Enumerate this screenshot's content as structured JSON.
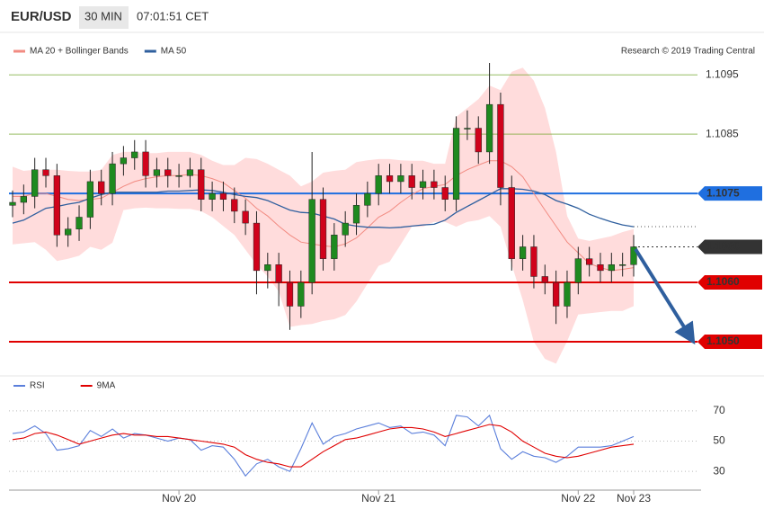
{
  "header": {
    "symbol": "EUR/USD",
    "interval": "30 MIN",
    "time": "07:01:51 CET"
  },
  "chart_data": [
    {
      "type": "candlestick",
      "credit": "Research © 2019 Trading Central",
      "up_color": "#1f8a1f",
      "down_color": "#d0021b",
      "open": [
        1.1073,
        1.10735,
        1.10745,
        1.1079,
        1.1078,
        1.1068,
        1.1069,
        1.1071,
        1.1077,
        1.1075,
        1.108,
        1.1081,
        1.1082,
        1.1078,
        1.1079,
        1.1078,
        1.1078,
        1.1079,
        1.1074,
        1.1075,
        1.1074,
        1.1072,
        1.107,
        1.1062,
        1.1063,
        1.106,
        1.1056,
        1.106,
        1.1074,
        1.1064,
        1.1068,
        1.107,
        1.1073,
        1.1075,
        1.1078,
        1.1077,
        1.1078,
        1.1076,
        1.1077,
        1.1076,
        1.1074,
        1.1086,
        1.1086,
        1.1082,
        1.109,
        1.1076,
        1.1064,
        1.1066,
        1.1061,
        1.106,
        1.1056,
        1.106,
        1.1064,
        1.1063,
        1.1062,
        1.1063,
        1.1063
      ],
      "high": [
        1.10755,
        1.10765,
        1.1081,
        1.1081,
        1.108,
        1.1071,
        1.1073,
        1.1079,
        1.1079,
        1.1082,
        1.1083,
        1.1084,
        1.1084,
        1.1081,
        1.1081,
        1.108,
        1.1081,
        1.1081,
        1.1077,
        1.1077,
        1.1076,
        1.1074,
        1.1072,
        1.1065,
        1.1065,
        1.1062,
        1.1062,
        1.1082,
        1.1076,
        1.107,
        1.1072,
        1.1075,
        1.1077,
        1.108,
        1.108,
        1.108,
        1.108,
        1.1079,
        1.1079,
        1.1078,
        1.1088,
        1.1089,
        1.1088,
        1.1097,
        1.1092,
        1.1078,
        1.1068,
        1.1068,
        1.1063,
        1.1062,
        1.1062,
        1.1066,
        1.1066,
        1.1065,
        1.1065,
        1.1065,
        1.1068
      ],
      "low": [
        1.1071,
        1.10715,
        1.10725,
        1.1076,
        1.1066,
        1.1066,
        1.1067,
        1.1069,
        1.1073,
        1.1073,
        1.1078,
        1.1079,
        1.1076,
        1.1076,
        1.1076,
        1.1076,
        1.1076,
        1.1072,
        1.1072,
        1.1072,
        1.107,
        1.1068,
        1.1058,
        1.1059,
        1.1056,
        1.1052,
        1.1054,
        1.1058,
        1.1062,
        1.1062,
        1.1066,
        1.1068,
        1.1071,
        1.1073,
        1.1075,
        1.1075,
        1.1074,
        1.1074,
        1.1074,
        1.1072,
        1.1072,
        1.1084,
        1.108,
        1.108,
        1.1073,
        1.1062,
        1.1062,
        1.1059,
        1.1058,
        1.1053,
        1.1054,
        1.1058,
        1.1061,
        1.106,
        1.106,
        1.1061,
        1.1061
      ],
      "close": [
        1.10735,
        1.10745,
        1.1079,
        1.1078,
        1.1068,
        1.1069,
        1.1071,
        1.1077,
        1.1075,
        1.108,
        1.1081,
        1.1082,
        1.1078,
        1.1079,
        1.1078,
        1.1078,
        1.1079,
        1.1074,
        1.1075,
        1.1074,
        1.1072,
        1.107,
        1.1062,
        1.1063,
        1.106,
        1.1056,
        1.106,
        1.1074,
        1.1064,
        1.1068,
        1.107,
        1.1073,
        1.1075,
        1.1078,
        1.1077,
        1.1078,
        1.1076,
        1.1077,
        1.1076,
        1.1074,
        1.1086,
        1.1086,
        1.1082,
        1.109,
        1.1076,
        1.1064,
        1.1066,
        1.1061,
        1.106,
        1.1056,
        1.106,
        1.1064,
        1.1063,
        1.1062,
        1.1063,
        1.1063,
        1.1066
      ],
      "series": [
        {
          "name": "MA 20 + Bollinger Bands",
          "color": "#f28b82",
          "band_color": "#ffdcdc",
          "values": [
            1.10745,
            1.10745,
            1.1075,
            1.1075,
            1.10745,
            1.1074,
            1.10738,
            1.1074,
            1.10742,
            1.10752,
            1.10762,
            1.1077,
            1.10775,
            1.10778,
            1.1078,
            1.1078,
            1.10782,
            1.1078,
            1.10775,
            1.10768,
            1.10755,
            1.10742,
            1.10725,
            1.10712,
            1.10695,
            1.1068,
            1.10668,
            1.10665,
            1.10662,
            1.1066,
            1.10665,
            1.10675,
            1.10692,
            1.1071,
            1.1072,
            1.10735,
            1.10748,
            1.10758,
            1.10762,
            1.10765,
            1.1078,
            1.1079,
            1.10798,
            1.10805,
            1.10805,
            1.10795,
            1.10778,
            1.1075,
            1.10722,
            1.10695,
            1.10668,
            1.1065,
            1.10632,
            1.10625,
            1.1062,
            1.10622,
            1.10625
          ],
          "upper": [
            1.10795,
            1.10788,
            1.1079,
            1.1079,
            1.1079,
            1.10788,
            1.10787,
            1.10787,
            1.1079,
            1.10815,
            1.1082,
            1.1082,
            1.10818,
            1.10818,
            1.1082,
            1.1082,
            1.1082,
            1.10815,
            1.10805,
            1.10798,
            1.10798,
            1.1081,
            1.10808,
            1.108,
            1.1079,
            1.1078,
            1.10762,
            1.1077,
            1.10785,
            1.10788,
            1.1079,
            1.10803,
            1.10806,
            1.10808,
            1.10808,
            1.10806,
            1.10805,
            1.10805,
            1.108,
            1.108,
            1.10879,
            1.10894,
            1.10909,
            1.10932,
            1.10924,
            1.10955,
            1.10962,
            1.1094,
            1.10894,
            1.1082,
            1.10712,
            1.10674,
            1.1067,
            1.10674,
            1.10678,
            1.10685,
            1.1069
          ],
          "lower": [
            1.10664,
            1.10666,
            1.10668,
            1.10655,
            1.10636,
            1.1064,
            1.10645,
            1.1066,
            1.10655,
            1.10667,
            1.10722,
            1.10725,
            1.10726,
            1.10725,
            1.10725,
            1.10724,
            1.10724,
            1.1072,
            1.1071,
            1.10695,
            1.1068,
            1.10655,
            1.1063,
            1.1061,
            1.10585,
            1.10525,
            1.10528,
            1.1053,
            1.10535,
            1.10538,
            1.10545,
            1.10568,
            1.10598,
            1.10628,
            1.10635,
            1.10664,
            1.10694,
            1.10694,
            1.10702,
            1.10702,
            1.10694,
            1.10702,
            1.10705,
            1.10712,
            1.10694,
            1.1063,
            1.1057,
            1.105,
            1.10471,
            1.10463,
            1.10501,
            1.10546,
            1.10548,
            1.1055,
            1.10552,
            1.10552,
            1.1056
          ]
        },
        {
          "name": "MA 50",
          "color": "#2f5f9e",
          "values": [
            1.107,
            1.10705,
            1.10715,
            1.10725,
            1.10728,
            1.10732,
            1.10735,
            1.10742,
            1.10748,
            1.10752,
            1.10752,
            1.10752,
            1.10752,
            1.10752,
            1.10754,
            1.10754,
            1.10755,
            1.10756,
            1.10755,
            1.10752,
            1.10748,
            1.10745,
            1.10743,
            1.10738,
            1.1073,
            1.10722,
            1.10718,
            1.10717,
            1.10712,
            1.10707,
            1.10698,
            1.10695,
            1.10693,
            1.10693,
            1.10692,
            1.10693,
            1.10695,
            1.10697,
            1.10698,
            1.10705,
            1.10718,
            1.10728,
            1.10738,
            1.10748,
            1.10758,
            1.10758,
            1.10757,
            1.10754,
            1.10748,
            1.10738,
            1.10732,
            1.10725,
            1.10715,
            1.10708,
            1.10702,
            1.10697,
            1.10694
          ]
        }
      ],
      "ylim": [
        1.1045,
        1.1097
      ],
      "levels": [
        {
          "value": 1.1095,
          "color": "#6aa121",
          "kind": "line"
        },
        {
          "value": 1.1085,
          "color": "#6aa121",
          "kind": "line"
        },
        {
          "value": 1.1075,
          "color": "#1f6fe0",
          "kind": "tag"
        },
        {
          "value": 1.1066,
          "color": "#333333",
          "kind": "dotted-tag"
        },
        {
          "value": 1.106,
          "label": "1.1060",
          "color": "#e00000",
          "kind": "tag"
        },
        {
          "value": 1.105,
          "label": "1.1050",
          "color": "#e00000",
          "kind": "tag"
        }
      ]
    },
    {
      "type": "line",
      "categories": [
        null,
        null,
        null,
        null,
        null,
        null,
        null,
        null,
        null,
        null,
        null,
        null,
        null,
        null,
        null,
        "Nov 20",
        null,
        null,
        null,
        null,
        null,
        null,
        null,
        null,
        null,
        null,
        null,
        null,
        null,
        null,
        null,
        null,
        null,
        "Nov 21",
        null,
        null,
        null,
        null,
        null,
        null,
        null,
        null,
        null,
        null,
        null,
        null,
        null,
        null,
        null,
        null,
        null,
        "Nov 22",
        null,
        null,
        null,
        null,
        "Nov 23"
      ],
      "series": [
        {
          "name": "RSI",
          "color": "#5b7fdb",
          "values": [
            55,
            56,
            60,
            55,
            44,
            45,
            47,
            57,
            53,
            58,
            52,
            55,
            54,
            52,
            50,
            52,
            51,
            44,
            47,
            46,
            38,
            27,
            35,
            38,
            33,
            30,
            45,
            62,
            48,
            53,
            55,
            58,
            60,
            62,
            59,
            60,
            55,
            56,
            54,
            47,
            67,
            66,
            60,
            67,
            45,
            38,
            43,
            40,
            39,
            36,
            40,
            46,
            46,
            46,
            47,
            50,
            53
          ]
        },
        {
          "name": "9MA",
          "color": "#e00000",
          "values": [
            51,
            52,
            55,
            56,
            54,
            51,
            48,
            50,
            52,
            54,
            55,
            54,
            54,
            53,
            53,
            52,
            51,
            50,
            49,
            48,
            46,
            41,
            38,
            36,
            35,
            33,
            33,
            38,
            43,
            47,
            51,
            52,
            54,
            56,
            58,
            59,
            59,
            58,
            56,
            53,
            55,
            57,
            59,
            61,
            60,
            56,
            50,
            46,
            42,
            40,
            39,
            40,
            42,
            44,
            46,
            47,
            48
          ]
        }
      ],
      "ylim": [
        20,
        80
      ],
      "yticks": [
        30,
        50,
        70
      ],
      "grid": true
    }
  ]
}
